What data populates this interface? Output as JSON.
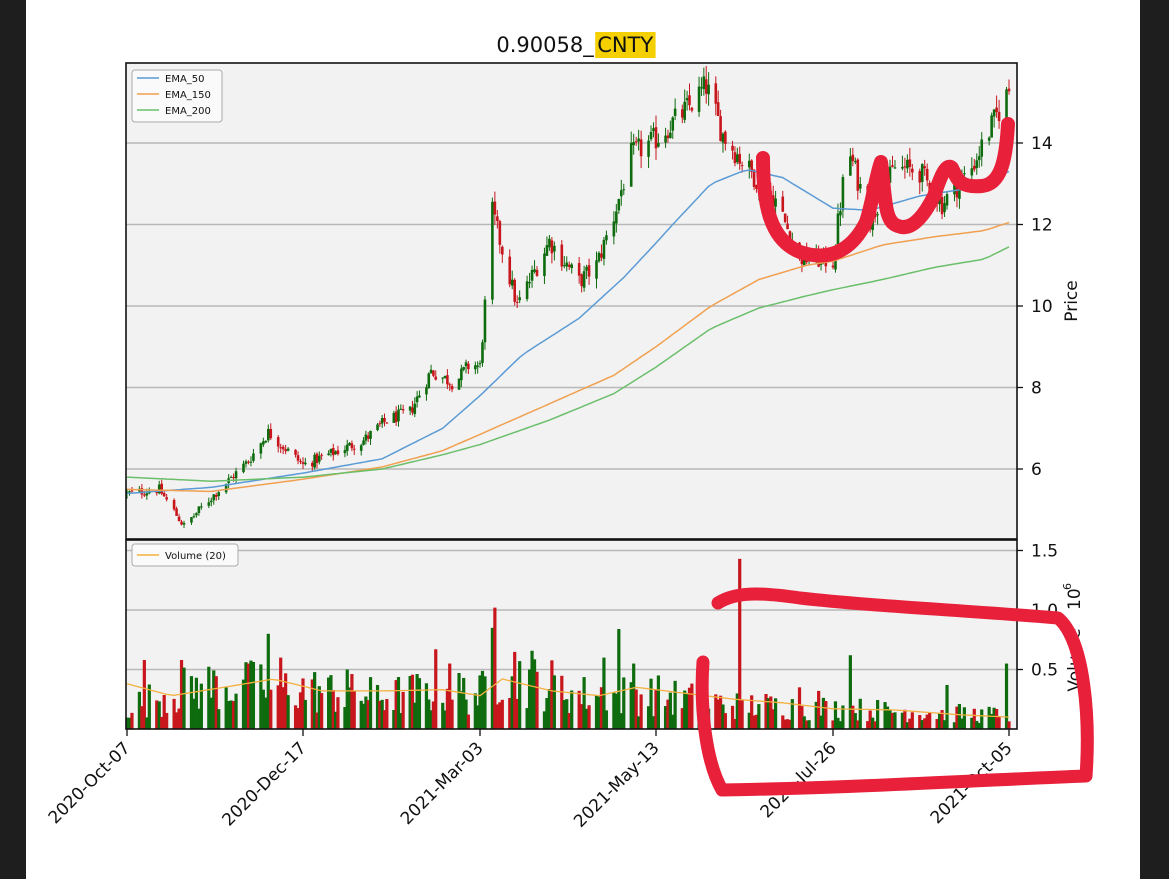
{
  "colors": {
    "up": "#0e6b0e",
    "down": "#c8161d",
    "ema_50": "#5b9bd5",
    "ema_150": "#f0a050",
    "ema_200": "#6bbf6b",
    "volume_ma": "#f4b040",
    "annotation": "#e8203a",
    "highlight": "#f5d000",
    "panel_bg": "#f2f2f2",
    "grid": "#b8b8b8"
  },
  "chart_data": [
    {
      "type": "line",
      "panel": "price",
      "title_prefix": "0.90058_",
      "title_ticker": "CNTY",
      "ylabel": "Price",
      "ylim": [
        4.9,
        16.6
      ],
      "yticks": [
        6,
        8,
        10,
        12,
        14
      ],
      "grid": true,
      "legend_position": "top-left",
      "x_dates": [
        "2020-Oct-07",
        "2020-Dec-17",
        "2021-Mar-03",
        "2021-May-13",
        "2021-Jul-26",
        "2021-Oct-05"
      ],
      "x_tick_labels": [
        "2020-Oct-07",
        "2020-Dec-17",
        "2021-Mar-03",
        "2021-May-13",
        "2021-Jul-26",
        "2021-Oct-05"
      ],
      "price_anchors": [
        [
          "2020-Oct-07",
          5.4
        ],
        [
          "2020-Oct-20",
          5.5
        ],
        [
          "2020-Oct-30",
          4.6
        ],
        [
          "2020-Nov-10",
          5.3
        ],
        [
          "2020-Nov-25",
          6.2
        ],
        [
          "2020-Dec-03",
          6.9
        ],
        [
          "2020-Dec-17",
          6.1
        ],
        [
          "2020-Dec-30",
          6.4
        ],
        [
          "2021-Jan-12",
          6.7
        ],
        [
          "2021-Jan-22",
          7.2
        ],
        [
          "2021-Feb-01",
          7.4
        ],
        [
          "2021-Feb-10",
          8.4
        ],
        [
          "2021-Feb-20",
          8.1
        ],
        [
          "2021-Feb-27",
          8.6
        ],
        [
          "2021-Mar-03",
          8.5
        ],
        [
          "2021-Mar-08",
          12.3
        ],
        [
          "2021-Mar-18",
          10.0
        ],
        [
          "2021-Mar-31",
          11.6
        ],
        [
          "2021-Apr-12",
          10.6
        ],
        [
          "2021-Apr-19",
          11.0
        ],
        [
          "2021-Apr-26",
          12.2
        ],
        [
          "2021-May-03",
          13.7
        ],
        [
          "2021-May-13",
          14.1
        ],
        [
          "2021-May-27",
          14.9
        ],
        [
          "2021-Jun-03",
          15.4
        ],
        [
          "2021-Jun-10",
          14.2
        ],
        [
          "2021-Jun-20",
          13.4
        ],
        [
          "2021-Jul-02",
          12.6
        ],
        [
          "2021-Jul-12",
          11.2
        ],
        [
          "2021-Jul-26",
          11.1
        ],
        [
          "2021-Aug-01",
          13.9
        ],
        [
          "2021-Aug-10",
          12.1
        ],
        [
          "2021-Aug-20",
          13.4
        ],
        [
          "2021-Aug-30",
          13.3
        ],
        [
          "2021-Sep-08",
          12.5
        ],
        [
          "2021-Sep-20",
          13.4
        ],
        [
          "2021-Oct-05",
          15.3
        ]
      ],
      "series": [
        {
          "name": "EMA_50",
          "color_key": "ema_50",
          "points": [
            [
              "2020-Oct-07",
              5.4
            ],
            [
              "2020-Nov-10",
              5.55
            ],
            [
              "2020-Dec-17",
              5.9
            ],
            [
              "2021-Jan-20",
              6.25
            ],
            [
              "2021-Feb-15",
              7.0
            ],
            [
              "2021-Mar-03",
              7.8
            ],
            [
              "2021-Mar-20",
              8.8
            ],
            [
              "2021-Apr-12",
              9.7
            ],
            [
              "2021-Apr-30",
              10.7
            ],
            [
              "2021-May-20",
              12.0
            ],
            [
              "2021-Jun-05",
              13.0
            ],
            [
              "2021-Jun-20",
              13.35
            ],
            [
              "2021-Jul-05",
              13.15
            ],
            [
              "2021-Jul-26",
              12.4
            ],
            [
              "2021-Aug-10",
              12.35
            ],
            [
              "2021-Aug-30",
              12.7
            ],
            [
              "2021-Sep-20",
              12.9
            ],
            [
              "2021-Oct-05",
              13.3
            ]
          ]
        },
        {
          "name": "EMA_150",
          "color_key": "ema_150",
          "points": [
            [
              "2020-Oct-07",
              5.5
            ],
            [
              "2020-Nov-10",
              5.45
            ],
            [
              "2020-Dec-17",
              5.75
            ],
            [
              "2021-Jan-20",
              6.05
            ],
            [
              "2021-Feb-15",
              6.45
            ],
            [
              "2021-Mar-03",
              6.85
            ],
            [
              "2021-Mar-31",
              7.6
            ],
            [
              "2021-Apr-26",
              8.3
            ],
            [
              "2021-May-13",
              9.0
            ],
            [
              "2021-Jun-05",
              10.0
            ],
            [
              "2021-Jun-25",
              10.65
            ],
            [
              "2021-Jul-15",
              11.0
            ],
            [
              "2021-Jul-26",
              11.1
            ],
            [
              "2021-Aug-15",
              11.5
            ],
            [
              "2021-Sep-05",
              11.7
            ],
            [
              "2021-Sep-25",
              11.85
            ],
            [
              "2021-Oct-05",
              12.05
            ]
          ]
        },
        {
          "name": "EMA_200",
          "color_key": "ema_200",
          "points": [
            [
              "2020-Oct-07",
              5.8
            ],
            [
              "2020-Nov-10",
              5.7
            ],
            [
              "2020-Dec-17",
              5.8
            ],
            [
              "2021-Jan-20",
              6.0
            ],
            [
              "2021-Feb-15",
              6.35
            ],
            [
              "2021-Mar-03",
              6.6
            ],
            [
              "2021-Mar-31",
              7.2
            ],
            [
              "2021-Apr-26",
              7.85
            ],
            [
              "2021-May-13",
              8.5
            ],
            [
              "2021-Jun-05",
              9.45
            ],
            [
              "2021-Jun-25",
              9.95
            ],
            [
              "2021-Jul-15",
              10.25
            ],
            [
              "2021-Jul-26",
              10.4
            ],
            [
              "2021-Aug-15",
              10.65
            ],
            [
              "2021-Sep-05",
              10.95
            ],
            [
              "2021-Sep-25",
              11.15
            ],
            [
              "2021-Oct-05",
              11.45
            ]
          ]
        }
      ],
      "legend": [
        "EMA_50",
        "EMA_150",
        "EMA_200"
      ]
    },
    {
      "type": "bar",
      "panel": "volume",
      "ylabel": "Volume",
      "ylabel_exponent": "10",
      "ylabel_exponent_power": "6",
      "ylim": [
        0,
        1.5
      ],
      "yticks": [
        "0.5",
        "1.0",
        "1.5"
      ],
      "grid": true,
      "legend_position": "top-left",
      "legend": [
        "Volume (20)"
      ],
      "volume_anchors": [
        [
          "2020-Oct-07",
          0.2
        ],
        [
          "2020-Nov-05",
          0.38
        ],
        [
          "2020-Dec-01",
          0.38
        ],
        [
          "2020-Dec-17",
          0.35
        ],
        [
          "2021-Jan-20",
          0.28
        ],
        [
          "2021-Feb-15",
          0.35
        ],
        [
          "2021-Mar-03",
          0.3
        ],
        [
          "2021-Mar-12",
          0.55
        ],
        [
          "2021-Apr-12",
          0.3
        ],
        [
          "2021-May-13",
          0.3
        ],
        [
          "2021-Jun-10",
          0.22
        ],
        [
          "2021-Jul-26",
          0.18
        ],
        [
          "2021-Sep-01",
          0.15
        ],
        [
          "2021-Oct-05",
          0.12
        ]
      ],
      "volume_spikes": [
        [
          "2020-Oct-14",
          0.58
        ],
        [
          "2020-Oct-29",
          0.58
        ],
        [
          "2020-Nov-15",
          0.76
        ],
        [
          "2020-Nov-25",
          0.55
        ],
        [
          "2020-Dec-03",
          0.8
        ],
        [
          "2020-Dec-08",
          0.6
        ],
        [
          "2021-Jan-05",
          0.5
        ],
        [
          "2021-Feb-12",
          0.67
        ],
        [
          "2021-Feb-18",
          0.55
        ],
        [
          "2021-Mar-09",
          1.02
        ],
        [
          "2021-Mar-08",
          0.85
        ],
        [
          "2021-Mar-23",
          0.5
        ],
        [
          "2021-Apr-22",
          0.6
        ],
        [
          "2021-Apr-28",
          0.84
        ],
        [
          "2021-May-04",
          0.55
        ],
        [
          "2021-Jun-01",
          0.3
        ],
        [
          "2021-Jun-17",
          1.43
        ],
        [
          "2021-Jul-12",
          0.35
        ],
        [
          "2021-Jul-20",
          0.32
        ],
        [
          "2021-Aug-02",
          0.62
        ],
        [
          "2021-Aug-15",
          0.25
        ],
        [
          "2021-Sep-10",
          0.37
        ],
        [
          "2021-Oct-04",
          0.55
        ]
      ],
      "volume_ma_anchors": [
        [
          "2020-Oct-07",
          0.38
        ],
        [
          "2020-Oct-25",
          0.28
        ],
        [
          "2020-Nov-15",
          0.35
        ],
        [
          "2020-Dec-05",
          0.42
        ],
        [
          "2020-Dec-25",
          0.32
        ],
        [
          "2021-Jan-20",
          0.32
        ],
        [
          "2021-Feb-15",
          0.33
        ],
        [
          "2021-Mar-03",
          0.28
        ],
        [
          "2021-Mar-12",
          0.42
        ],
        [
          "2021-Apr-01",
          0.32
        ],
        [
          "2021-Apr-20",
          0.28
        ],
        [
          "2021-May-05",
          0.35
        ],
        [
          "2021-May-25",
          0.3
        ],
        [
          "2021-Jun-15",
          0.25
        ],
        [
          "2021-Jul-05",
          0.22
        ],
        [
          "2021-Jul-26",
          0.17
        ],
        [
          "2021-Aug-20",
          0.16
        ],
        [
          "2021-Sep-15",
          0.12
        ],
        [
          "2021-Oct-05",
          0.1
        ]
      ]
    }
  ],
  "annotations": [
    {
      "name": "red-curve-u-shape",
      "shape": "hand-drawn-u-w-curve",
      "panel": "price"
    },
    {
      "name": "red-box-volume",
      "shape": "hand-drawn-box",
      "panel": "volume"
    }
  ]
}
